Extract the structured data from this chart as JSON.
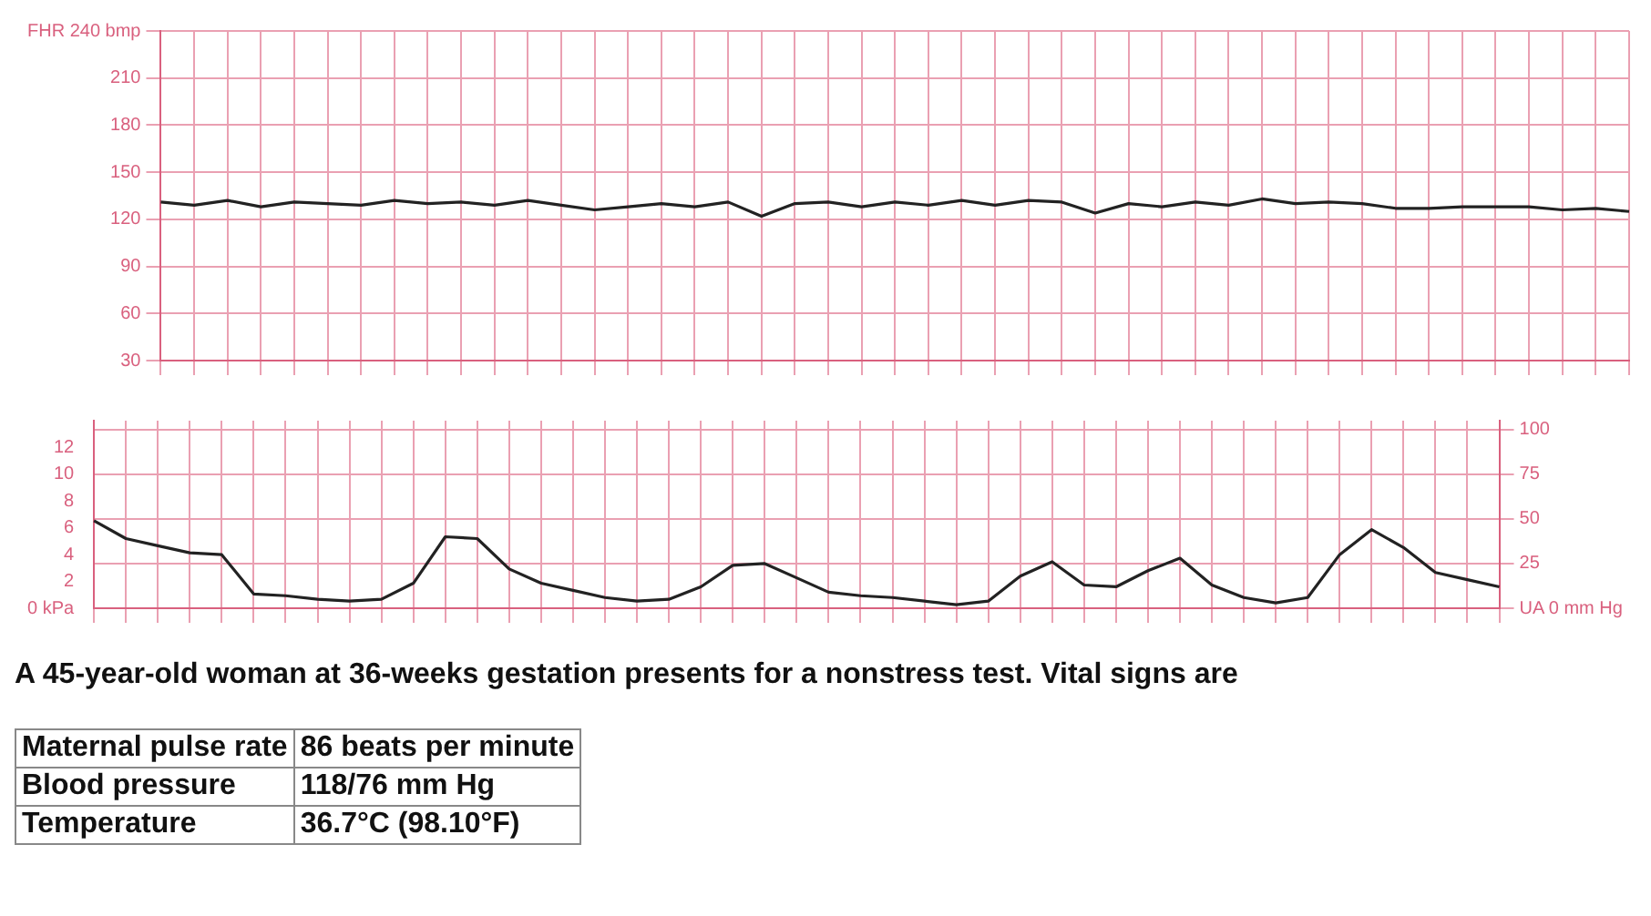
{
  "chart_data": [
    {
      "type": "line",
      "categories": [
        null,
        null,
        null,
        null,
        null,
        null,
        null,
        null,
        null,
        null,
        null,
        null,
        null,
        null,
        null,
        null,
        null,
        null,
        null,
        null,
        null,
        null,
        null,
        null,
        null,
        null,
        null,
        null,
        null,
        null,
        null,
        null,
        null,
        null,
        null,
        null,
        null,
        null,
        null,
        null,
        null,
        null,
        null,
        null,
        null
      ],
      "series": [
        {
          "color": "#222222",
          "values": [
            131,
            129,
            132,
            128,
            131,
            130,
            129,
            132,
            130,
            131,
            129,
            132,
            129,
            126,
            128,
            130,
            128,
            131,
            122,
            130,
            131,
            128,
            131,
            129,
            132,
            129,
            132,
            131,
            124,
            130,
            128,
            131,
            129,
            133,
            130,
            131,
            130,
            127,
            127,
            128,
            128,
            128,
            126,
            127,
            125
          ]
        }
      ],
      "ylim": [
        30,
        240
      ],
      "yticks": [
        30,
        60,
        90,
        120,
        150,
        180,
        210,
        {
          "value": 240,
          "label": "FHR 240 bmp"
        }
      ],
      "grid": true,
      "marker": "none",
      "legend": false
    },
    {
      "type": "line",
      "categories": [
        null,
        null,
        null,
        null,
        null,
        null,
        null,
        null,
        null,
        null,
        null,
        null,
        null,
        null,
        null,
        null,
        null,
        null,
        null,
        null,
        null,
        null,
        null,
        null,
        null,
        null,
        null,
        null,
        null,
        null,
        null,
        null,
        null,
        null,
        null,
        null,
        null,
        null,
        null,
        null,
        null,
        null,
        null,
        null,
        null
      ],
      "series": [
        {
          "color": "#222222",
          "values": [
            49,
            39,
            35,
            31,
            30,
            8,
            7,
            5,
            4,
            5,
            14,
            40,
            39,
            22,
            14,
            10,
            6,
            4,
            5,
            12,
            24,
            25,
            17,
            9,
            7,
            6,
            4,
            2,
            4,
            18,
            26,
            13,
            12,
            21,
            28,
            13,
            6,
            3,
            6,
            30,
            44,
            34,
            20,
            16,
            12
          ]
        }
      ],
      "ylim": [
        0,
        105
      ],
      "yticks": [
        {
          "value": 0,
          "label": "UA 0 mm Hg"
        },
        25,
        50,
        75,
        100
      ],
      "y2lim": [
        0,
        14
      ],
      "y2ticks": [
        {
          "value": 0,
          "label": "0 kPa"
        },
        2,
        4,
        6,
        8,
        10,
        12
      ],
      "grid": true,
      "marker": "none",
      "legend": false
    },
    {
      "type": "other",
      "annotations": [
        "A 45-year-old woman at 36-weeks gestation presents for a nonstress test. Vital signs are",
        "Maternal pulse rate",
        "86 beats per minute",
        "Blood pressure",
        "118/76 mm Hg",
        "Temperature",
        "36.7°C (98.10°F)"
      ]
    }
  ]
}
